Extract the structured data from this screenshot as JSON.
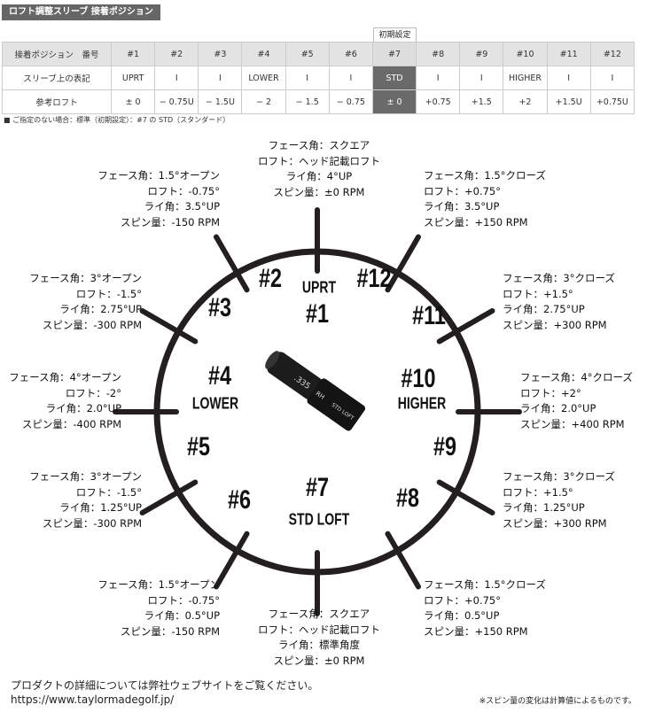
{
  "title": "ロフト調整スリーブ 接着ポジション",
  "initial_label": "初期設定",
  "table": {
    "row_headers": [
      "接着ポジション　番号",
      "スリーブ上の表記",
      "参考ロフト"
    ],
    "positions": [
      "#1",
      "#2",
      "#3",
      "#4",
      "#5",
      "#6",
      "#7",
      "#8",
      "#9",
      "#10",
      "#11",
      "#12"
    ],
    "markings": [
      "UPRT",
      "I",
      "I",
      "LOWER",
      "I",
      "I",
      "STD",
      "I",
      "I",
      "HIGHER",
      "I",
      "I"
    ],
    "lofts": [
      "± 0",
      "− 0.75U",
      "− 1.5U",
      "− 2",
      "− 1.5",
      "− 0.75",
      "± 0",
      "+0.75",
      "+1.5",
      "+2",
      "+1.5U",
      "+0.75U"
    ]
  },
  "note": "■ ご指定のない場合：標準（初期設定）：#7 の STD（スタンダード）",
  "dial": {
    "labels": {
      "p1": "#1",
      "p2": "#2",
      "p3": "#3",
      "p4": "#4",
      "p5": "#5",
      "p6": "#6",
      "p7": "#7",
      "p8": "#8",
      "p9": "#9",
      "p10": "#10",
      "p11": "#11",
      "p12": "#12",
      "uprt": "UPRT",
      "lower": "LOWER",
      "higher": "HIGHER",
      "std": "STD LOFT"
    },
    "sleeve_text": {
      "a": ".335",
      "b": "RH",
      "c": "STD LOFT"
    }
  },
  "specs": {
    "p1": [
      "フェース角：スクエア",
      "ロフト：ヘッド記載ロフト",
      "ライ角：4°UP",
      "スピン量：±0 RPM"
    ],
    "p2": [
      "フェース角：1.5°オープン",
      "ロフト：-0.75°",
      "ライ角：3.5°UP",
      "スピン量：-150 RPM"
    ],
    "p12": [
      "フェース角：1.5°クローズ",
      "ロフト：+0.75°",
      "ライ角：3.5°UP",
      "スピン量：+150 RPM"
    ],
    "p3": [
      "フェース角：3°オープン",
      "ロフト：-1.5°",
      "ライ角：2.75°UP",
      "スピン量：-300 RPM"
    ],
    "p11": [
      "フェース角：3°クローズ",
      "ロフト：+1.5°",
      "ライ角：2.75°UP",
      "スピン量：+300 RPM"
    ],
    "p4": [
      "フェース角：4°オープン",
      "ロフト：-2°",
      "ライ角：2.0°UP",
      "スピン量：-400 RPM"
    ],
    "p10": [
      "フェース角：4°クローズ",
      "ロフト：+2°",
      "ライ角：2.0°UP",
      "スピン量：+400 RPM"
    ],
    "p5": [
      "フェース角：3°オープン",
      "ロフト：-1.5°",
      "ライ角：1.25°UP",
      "スピン量：-300 RPM"
    ],
    "p9": [
      "フェース角：3°クローズ",
      "ロフト：+1.5°",
      "ライ角：1.25°UP",
      "スピン量：+300 RPM"
    ],
    "p6": [
      "フェース角：1.5°オープン",
      "ロフト：-0.75°",
      "ライ角：0.5°UP",
      "スピン量：-150 RPM"
    ],
    "p8": [
      "フェース角：1.5°クローズ",
      "ロフト：+0.75°",
      "ライ角：0.5°UP",
      "スピン量：+150 RPM"
    ],
    "p7": [
      "フェース角：スクエア",
      "ロフト：ヘッド記載ロフト",
      "ライ角：標準角度",
      "スピン量：±0 RPM"
    ]
  },
  "footer": {
    "details": "プロダクトの詳細については弊社ウェブサイトをご覧ください。",
    "url": "https://www.taylormadegolf.jp/",
    "spin_note": "※スピン量の変化は計算値によるものです。"
  }
}
